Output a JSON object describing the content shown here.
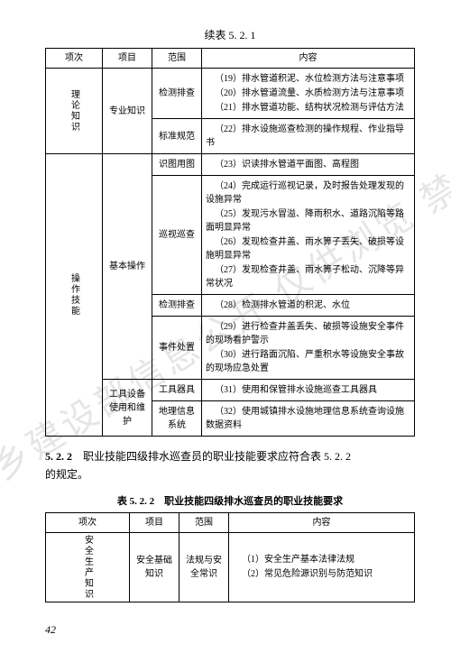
{
  "cont_header": "续表 5. 2. 1",
  "table1": {
    "headers": [
      "项次",
      "项目",
      "范围",
      "内容"
    ],
    "groups": [
      {
        "axis": "理论知识",
        "sub": "专业知识",
        "rows": [
          {
            "scope": "检测排查",
            "items": [
              "（19）排水管道积泥、水位检测方法与注意事项",
              "（20）排水管道流量、水质检测方法与注意事项",
              "（21）排水管道功能、结构状况检测与评估方法"
            ]
          },
          {
            "scope": "标准规范",
            "items": [
              "（22）排水设施巡查检测的操作规程、作业指导书"
            ]
          }
        ]
      },
      {
        "axis": "操作技能",
        "subs": [
          {
            "sub": "基本操作",
            "rows": [
              {
                "scope": "识图用图",
                "items": [
                  "（23）识读排水管道平面图、高程图"
                ]
              },
              {
                "scope": "巡视巡查",
                "items": [
                  "（24）完成运行巡视记录，及时报告处理发现的设施异常",
                  "（25）发现污水冒溢、降雨积水、道路沉陷等路面明显异常",
                  "（26）发现检查井盖、雨水箅子丢失、破损等设施明显异常",
                  "（27）发现检查井盖、雨水箅子松动、沉降等异常状况"
                ]
              },
              {
                "scope": "检测排查",
                "items": [
                  "（28）检测排水管道的积泥、水位"
                ]
              },
              {
                "scope": "事件处置",
                "items": [
                  "（29）进行检查井盖丢失、破损等设施安全事件的现场看护警示",
                  "（30）进行路面沉陷、严重积水等设施安全事故的现场应急处置"
                ]
              }
            ]
          },
          {
            "sub": "工具设备使用和维护",
            "rows": [
              {
                "scope": "工具器具",
                "items": [
                  "（31）使用和保管排水设施巡查工具器具"
                ]
              },
              {
                "scope": "地理信息系统",
                "items": [
                  "（32）使用城镇排水设施地理信息系统查询设施数据资料"
                ]
              }
            ]
          }
        ]
      }
    ]
  },
  "section": {
    "num": "5. 2. 2",
    "text_a": "职业技能四级排水巡查员的职业技能要求应符合表 5. 2. 2",
    "text_b": "的规定。"
  },
  "table2_title": "表 5. 2. 2　职业技能四级排水巡查员的职业技能要求",
  "table2": {
    "headers": [
      "项次",
      "项目",
      "范围",
      "内容"
    ],
    "row": {
      "axis": "安全生产知识",
      "sub": "安全基础知识",
      "scope": "法规与安全常识",
      "items": [
        "（1）安全生产基本法律法规",
        "（2）常见危险源识别与防范知识"
      ]
    }
  },
  "page_num": "42",
  "watermark": "住房城乡建设部信息公开 仅供浏览 禁用于商"
}
